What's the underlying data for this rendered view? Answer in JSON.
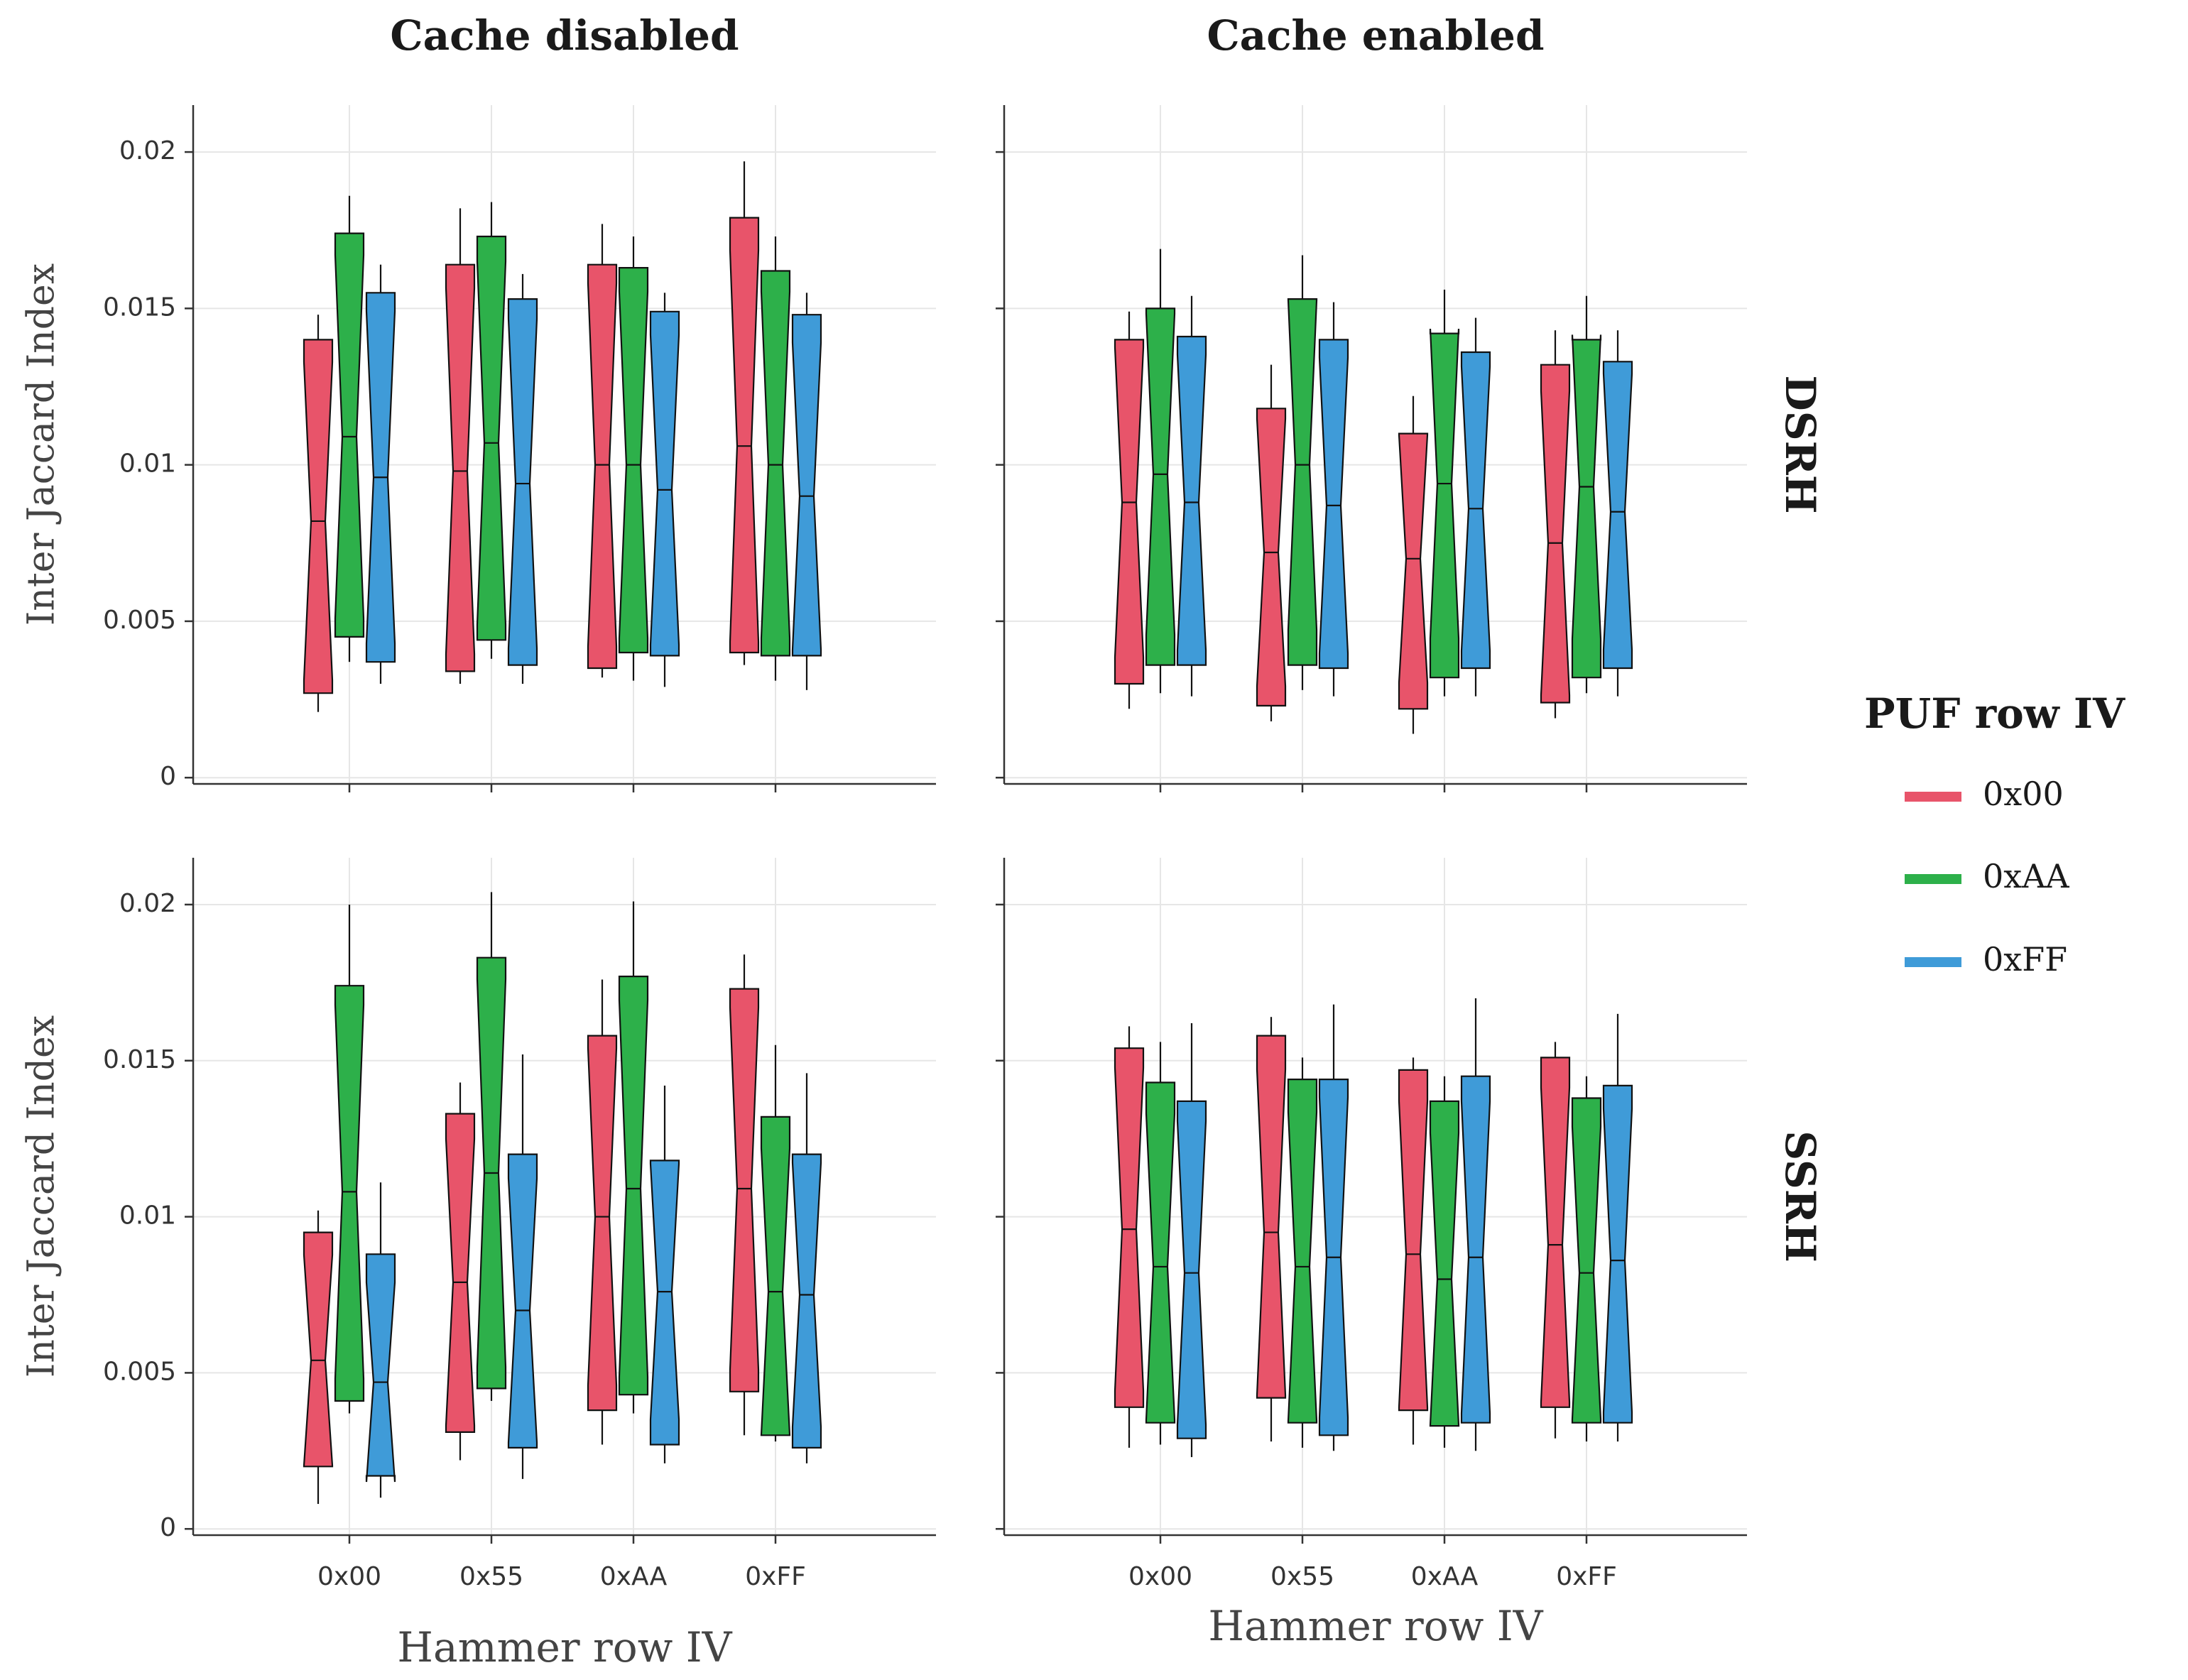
{
  "chart_data": {
    "type": "boxplot",
    "facets": {
      "columns": [
        "Cache disabled",
        "Cache enabled"
      ],
      "rows": [
        "DSRH",
        "SSRH"
      ]
    },
    "xlabel": "Hammer row IV",
    "ylabel": "Inter Jaccard Index",
    "categories": [
      "0x00",
      "0x55",
      "0xAA",
      "0xFF"
    ],
    "yticks": [
      "0",
      "0.005",
      "0.01",
      "0.015",
      "0.02"
    ],
    "ytick_values": [
      0,
      0.005,
      0.01,
      0.015,
      0.02
    ],
    "ylim": [
      -0.0002,
      0.0215
    ],
    "legend": {
      "title": "PUF row IV",
      "position": "right",
      "entries": [
        {
          "label": "0x00",
          "color": "#E8546A"
        },
        {
          "label": "0xAA",
          "color": "#2DB04A"
        },
        {
          "label": "0xFF",
          "color": "#3F9BD8"
        }
      ]
    },
    "grid": true,
    "panels": [
      {
        "row": "DSRH",
        "col": "Cache disabled",
        "boxes": [
          [
            {
              "whisker_low": 0.0021,
              "q1": 0.0027,
              "median": 0.0082,
              "q3": 0.014,
              "whisker_high": 0.0148
            },
            {
              "whisker_low": 0.0037,
              "q1": 0.0045,
              "median": 0.0109,
              "q3": 0.0174,
              "whisker_high": 0.0186
            },
            {
              "whisker_low": 0.003,
              "q1": 0.0037,
              "median": 0.0096,
              "q3": 0.0155,
              "whisker_high": 0.0164
            }
          ],
          [
            {
              "whisker_low": 0.003,
              "q1": 0.0034,
              "median": 0.0098,
              "q3": 0.0164,
              "whisker_high": 0.0182
            },
            {
              "whisker_low": 0.0038,
              "q1": 0.0044,
              "median": 0.0107,
              "q3": 0.0173,
              "whisker_high": 0.0184
            },
            {
              "whisker_low": 0.003,
              "q1": 0.0036,
              "median": 0.0094,
              "q3": 0.0153,
              "whisker_high": 0.0161
            }
          ],
          [
            {
              "whisker_low": 0.0032,
              "q1": 0.0035,
              "median": 0.01,
              "q3": 0.0164,
              "whisker_high": 0.0177
            },
            {
              "whisker_low": 0.0031,
              "q1": 0.004,
              "median": 0.01,
              "q3": 0.0163,
              "whisker_high": 0.0173
            },
            {
              "whisker_low": 0.0029,
              "q1": 0.0039,
              "median": 0.0092,
              "q3": 0.0149,
              "whisker_high": 0.0155
            }
          ],
          [
            {
              "whisker_low": 0.0036,
              "q1": 0.004,
              "median": 0.0106,
              "q3": 0.0179,
              "whisker_high": 0.0197
            },
            {
              "whisker_low": 0.0031,
              "q1": 0.0039,
              "median": 0.01,
              "q3": 0.0162,
              "whisker_high": 0.0173
            },
            {
              "whisker_low": 0.0028,
              "q1": 0.0039,
              "median": 0.009,
              "q3": 0.0148,
              "whisker_high": 0.0155
            }
          ]
        ]
      },
      {
        "row": "DSRH",
        "col": "Cache enabled",
        "boxes": [
          [
            {
              "whisker_low": 0.0022,
              "q1": 0.003,
              "median": 0.0088,
              "q3": 0.014,
              "whisker_high": 0.0149
            },
            {
              "whisker_low": 0.0027,
              "q1": 0.0036,
              "median": 0.0097,
              "q3": 0.015,
              "whisker_high": 0.0169
            },
            {
              "whisker_low": 0.0026,
              "q1": 0.0036,
              "median": 0.0088,
              "q3": 0.0141,
              "whisker_high": 0.0154
            }
          ],
          [
            {
              "whisker_low": 0.0018,
              "q1": 0.0023,
              "median": 0.0072,
              "q3": 0.0118,
              "whisker_high": 0.0132
            },
            {
              "whisker_low": 0.0028,
              "q1": 0.0036,
              "median": 0.01,
              "q3": 0.0153,
              "whisker_high": 0.0167
            },
            {
              "whisker_low": 0.0026,
              "q1": 0.0035,
              "median": 0.0087,
              "q3": 0.014,
              "whisker_high": 0.0152
            }
          ],
          [
            {
              "whisker_low": 0.0014,
              "q1": 0.0022,
              "median": 0.007,
              "q3": 0.011,
              "whisker_high": 0.0122
            },
            {
              "whisker_low": 0.0026,
              "q1": 0.0032,
              "median": 0.0094,
              "q3": 0.0142,
              "whisker_high": 0.0156
            },
            {
              "whisker_low": 0.0026,
              "q1": 0.0035,
              "median": 0.0086,
              "q3": 0.0136,
              "whisker_high": 0.0147
            }
          ],
          [
            {
              "whisker_low": 0.0019,
              "q1": 0.0024,
              "median": 0.0075,
              "q3": 0.0132,
              "whisker_high": 0.0143
            },
            {
              "whisker_low": 0.0027,
              "q1": 0.0032,
              "median": 0.0093,
              "q3": 0.014,
              "whisker_high": 0.0154
            },
            {
              "whisker_low": 0.0026,
              "q1": 0.0035,
              "median": 0.0085,
              "q3": 0.0133,
              "whisker_high": 0.0143
            }
          ]
        ]
      },
      {
        "row": "SSRH",
        "col": "Cache disabled",
        "boxes": [
          [
            {
              "whisker_low": 0.0008,
              "q1": 0.002,
              "median": 0.0054,
              "q3": 0.0095,
              "whisker_high": 0.0102
            },
            {
              "whisker_low": 0.0037,
              "q1": 0.0041,
              "median": 0.0108,
              "q3": 0.0174,
              "whisker_high": 0.02
            },
            {
              "whisker_low": 0.001,
              "q1": 0.0017,
              "median": 0.0047,
              "q3": 0.0088,
              "whisker_high": 0.0111
            }
          ],
          [
            {
              "whisker_low": 0.0022,
              "q1": 0.0031,
              "median": 0.0079,
              "q3": 0.0133,
              "whisker_high": 0.0143
            },
            {
              "whisker_low": 0.0041,
              "q1": 0.0045,
              "median": 0.0114,
              "q3": 0.0183,
              "whisker_high": 0.0204
            },
            {
              "whisker_low": 0.0016,
              "q1": 0.0026,
              "median": 0.007,
              "q3": 0.012,
              "whisker_high": 0.0152
            }
          ],
          [
            {
              "whisker_low": 0.0027,
              "q1": 0.0038,
              "median": 0.01,
              "q3": 0.0158,
              "whisker_high": 0.0176
            },
            {
              "whisker_low": 0.0037,
              "q1": 0.0043,
              "median": 0.0109,
              "q3": 0.0177,
              "whisker_high": 0.0201
            },
            {
              "whisker_low": 0.0021,
              "q1": 0.0027,
              "median": 0.0076,
              "q3": 0.0118,
              "whisker_high": 0.0142
            }
          ],
          [
            {
              "whisker_low": 0.003,
              "q1": 0.0044,
              "median": 0.0109,
              "q3": 0.0173,
              "whisker_high": 0.0184
            },
            {
              "whisker_low": 0.0028,
              "q1": 0.003,
              "median": 0.0076,
              "q3": 0.0132,
              "whisker_high": 0.0155
            },
            {
              "whisker_low": 0.0021,
              "q1": 0.0026,
              "median": 0.0075,
              "q3": 0.012,
              "whisker_high": 0.0146
            }
          ]
        ]
      },
      {
        "row": "SSRH",
        "col": "Cache enabled",
        "boxes": [
          [
            {
              "whisker_low": 0.0026,
              "q1": 0.0039,
              "median": 0.0096,
              "q3": 0.0154,
              "whisker_high": 0.0161
            },
            {
              "whisker_low": 0.0027,
              "q1": 0.0034,
              "median": 0.0084,
              "q3": 0.0143,
              "whisker_high": 0.0156
            },
            {
              "whisker_low": 0.0023,
              "q1": 0.0029,
              "median": 0.0082,
              "q3": 0.0137,
              "whisker_high": 0.0162
            }
          ],
          [
            {
              "whisker_low": 0.0028,
              "q1": 0.0042,
              "median": 0.0095,
              "q3": 0.0158,
              "whisker_high": 0.0164
            },
            {
              "whisker_low": 0.0026,
              "q1": 0.0034,
              "median": 0.0084,
              "q3": 0.0144,
              "whisker_high": 0.0151
            },
            {
              "whisker_low": 0.0025,
              "q1": 0.003,
              "median": 0.0087,
              "q3": 0.0144,
              "whisker_high": 0.0168
            }
          ],
          [
            {
              "whisker_low": 0.0027,
              "q1": 0.0038,
              "median": 0.0088,
              "q3": 0.0147,
              "whisker_high": 0.0151
            },
            {
              "whisker_low": 0.0026,
              "q1": 0.0033,
              "median": 0.008,
              "q3": 0.0137,
              "whisker_high": 0.0145
            },
            {
              "whisker_low": 0.0025,
              "q1": 0.0034,
              "median": 0.0087,
              "q3": 0.0145,
              "whisker_high": 0.017
            }
          ],
          [
            {
              "whisker_low": 0.0029,
              "q1": 0.0039,
              "median": 0.0091,
              "q3": 0.0151,
              "whisker_high": 0.0156
            },
            {
              "whisker_low": 0.0028,
              "q1": 0.0034,
              "median": 0.0082,
              "q3": 0.0138,
              "whisker_high": 0.0145
            },
            {
              "whisker_low": 0.0028,
              "q1": 0.0034,
              "median": 0.0086,
              "q3": 0.0142,
              "whisker_high": 0.0165
            }
          ]
        ]
      }
    ]
  }
}
